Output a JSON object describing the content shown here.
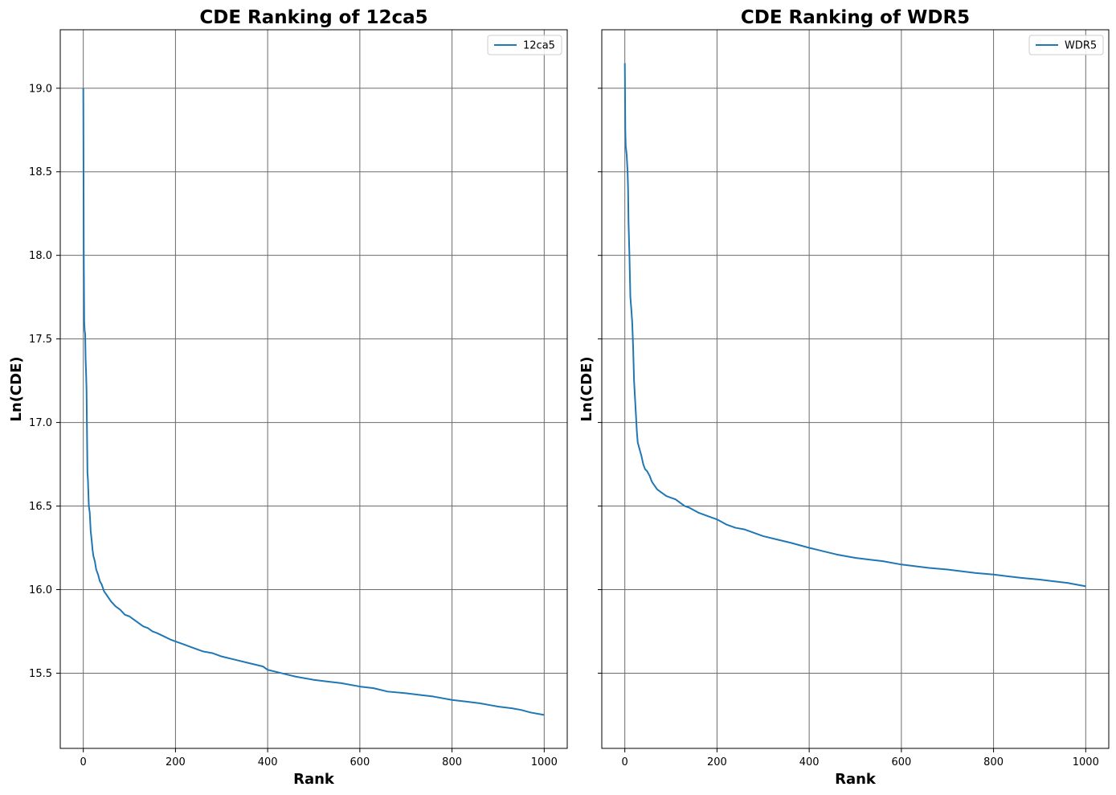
{
  "chart_data": [
    {
      "type": "line",
      "title": "CDE Ranking of 12ca5",
      "xlabel": "Rank",
      "ylabel": "Ln(CDE)",
      "xlim": [
        -50,
        1050
      ],
      "ylim": [
        15.05,
        19.35
      ],
      "xticks": [
        "0",
        "200",
        "400",
        "600",
        "800",
        "1000"
      ],
      "yticks": [
        "15.5",
        "16.0",
        "16.5",
        "17.0",
        "17.5",
        "18.0",
        "18.5",
        "19.0"
      ],
      "grid": true,
      "legend_position": "top-right",
      "series": [
        {
          "name": "12ca5",
          "color": "#1f77b4",
          "x": [
            0,
            1,
            2,
            3,
            4,
            5,
            6,
            7,
            8,
            9,
            10,
            12,
            14,
            16,
            18,
            20,
            22,
            25,
            28,
            32,
            36,
            40,
            45,
            50,
            55,
            60,
            70,
            80,
            90,
            100,
            110,
            120,
            130,
            140,
            150,
            160,
            175,
            190,
            200,
            220,
            240,
            260,
            280,
            300,
            330,
            360,
            390,
            400,
            430,
            460,
            500,
            530,
            560,
            600,
            630,
            660,
            700,
            730,
            760,
            800,
            830,
            860,
            880,
            900,
            930,
            950,
            970,
            1000
          ],
          "y": [
            19.0,
            18.0,
            17.6,
            17.55,
            17.53,
            17.38,
            17.3,
            17.2,
            16.95,
            16.7,
            16.66,
            16.5,
            16.46,
            16.35,
            16.3,
            16.24,
            16.2,
            16.17,
            16.12,
            16.09,
            16.05,
            16.03,
            15.99,
            15.97,
            15.95,
            15.93,
            15.9,
            15.88,
            15.85,
            15.84,
            15.82,
            15.8,
            15.78,
            15.77,
            15.75,
            15.74,
            15.72,
            15.7,
            15.69,
            15.67,
            15.65,
            15.63,
            15.62,
            15.6,
            15.58,
            15.56,
            15.54,
            15.52,
            15.5,
            15.48,
            15.46,
            15.45,
            15.44,
            15.42,
            15.41,
            15.39,
            15.38,
            15.37,
            15.36,
            15.34,
            15.33,
            15.32,
            15.31,
            15.3,
            15.29,
            15.28,
            15.265,
            15.25
          ]
        }
      ]
    },
    {
      "type": "line",
      "title": "CDE Ranking of WDR5",
      "xlabel": "Rank",
      "ylabel": "Ln(CDE)",
      "xlim": [
        -50,
        1050
      ],
      "ylim": [
        15.05,
        19.35
      ],
      "xticks": [
        "0",
        "200",
        "400",
        "600",
        "800",
        "1000"
      ],
      "yticks": [
        "15.5",
        "16.0",
        "16.5",
        "17.0",
        "17.5",
        "18.0",
        "18.5",
        "19.0"
      ],
      "grid": true,
      "legend_position": "top-right",
      "series": [
        {
          "name": "WDR5",
          "color": "#1f77b4",
          "x": [
            0,
            1,
            2,
            3,
            4,
            5,
            6,
            7,
            8,
            10,
            12,
            14,
            16,
            18,
            20,
            22,
            24,
            26,
            28,
            30,
            32,
            34,
            36,
            40,
            44,
            48,
            50,
            54,
            58,
            60,
            65,
            70,
            80,
            90,
            100,
            110,
            120,
            130,
            140,
            160,
            180,
            200,
            220,
            240,
            260,
            280,
            300,
            330,
            360,
            400,
            430,
            460,
            500,
            530,
            560,
            600,
            630,
            660,
            700,
            730,
            760,
            800,
            830,
            860,
            900,
            930,
            960,
            1000
          ],
          "y": [
            19.15,
            18.75,
            18.65,
            18.63,
            18.6,
            18.55,
            18.5,
            18.4,
            18.2,
            18.0,
            17.75,
            17.68,
            17.6,
            17.45,
            17.25,
            17.15,
            17.05,
            16.95,
            16.88,
            16.86,
            16.84,
            16.82,
            16.8,
            16.75,
            16.72,
            16.71,
            16.7,
            16.68,
            16.65,
            16.64,
            16.62,
            16.6,
            16.58,
            16.56,
            16.55,
            16.54,
            16.52,
            16.5,
            16.49,
            16.46,
            16.44,
            16.42,
            16.39,
            16.37,
            16.36,
            16.34,
            16.32,
            16.3,
            16.28,
            16.25,
            16.23,
            16.21,
            16.19,
            16.18,
            16.17,
            16.15,
            16.14,
            16.13,
            16.12,
            16.11,
            16.1,
            16.09,
            16.08,
            16.07,
            16.06,
            16.05,
            16.04,
            16.02
          ]
        }
      ]
    }
  ]
}
